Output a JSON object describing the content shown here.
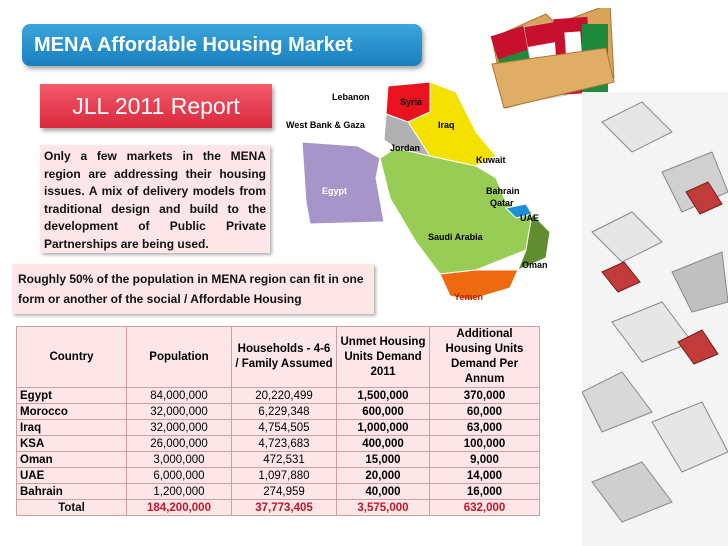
{
  "slide": {
    "title": "MENA Affordable Housing Market",
    "report": "JLL 2011 Report",
    "info": "Only a few markets in the MENA region are addressing their housing issues. A mix of delivery models from traditional design and build to the development of Public Private Partnerships are being used.",
    "note": "Roughly 50% of the population in MENA region can fit in one form or another of the social / Affordable Housing"
  },
  "map": {
    "labels": {
      "lebanon": "Lebanon",
      "syria": "Syria",
      "westbank": "West Bank & Gaza",
      "iraq": "Iraq",
      "jordan": "Jordan",
      "kuwait": "Kuwait",
      "egypt": "Egypt",
      "bahrain": "Bahrain",
      "qatar": "Qatar",
      "uae": "UAE",
      "saudi": "Saudi Arabia",
      "oman": "Oman",
      "yemen": "Yemen"
    },
    "colors": {
      "egypt": "#a695c9",
      "saudi": "#99cc55",
      "syria": "#e8131f",
      "iraq": "#f4e100",
      "jordan": "#b0b0b0",
      "oman": "#5f8d2f",
      "yemen": "#ed6a11",
      "uae": "#1d8fd6"
    }
  },
  "table": {
    "headers": {
      "country": "Country",
      "population": "Population",
      "households": "Households - 4-6 / Family Assumed",
      "unmet": "Unmet Housing Units Demand 2011",
      "additional": "Additional Housing Units Demand Per Annum"
    },
    "rows": [
      {
        "country": "Egypt",
        "population": "84,000,000",
        "households": "20,220,499",
        "unmet": "1,500,000",
        "additional": "370,000"
      },
      {
        "country": "Morocco",
        "population": "32,000,000",
        "households": "6,229,348",
        "unmet": "600,000",
        "additional": "60,000"
      },
      {
        "country": "Iraq",
        "population": "32,000,000",
        "households": "4,754,505",
        "unmet": "1,000,000",
        "additional": "63,000"
      },
      {
        "country": "KSA",
        "population": "26,000,000",
        "households": "4,723,683",
        "unmet": "400,000",
        "additional": "100,000"
      },
      {
        "country": "Oman",
        "population": "3,000,000",
        "households": "472,531",
        "unmet": "15,000",
        "additional": "9,000"
      },
      {
        "country": "UAE",
        "population": "6,000,000",
        "households": "1,097,880",
        "unmet": "20,000",
        "additional": "14,000"
      },
      {
        "country": "Bahrain",
        "population": "1,200,000",
        "households": "274,959",
        "unmet": "40,000",
        "additional": "16,000"
      }
    ],
    "total": {
      "label": "Total",
      "population": "184,200,000",
      "households": "37,773,405",
      "unmet": "3,575,000",
      "additional": "632,000"
    }
  }
}
